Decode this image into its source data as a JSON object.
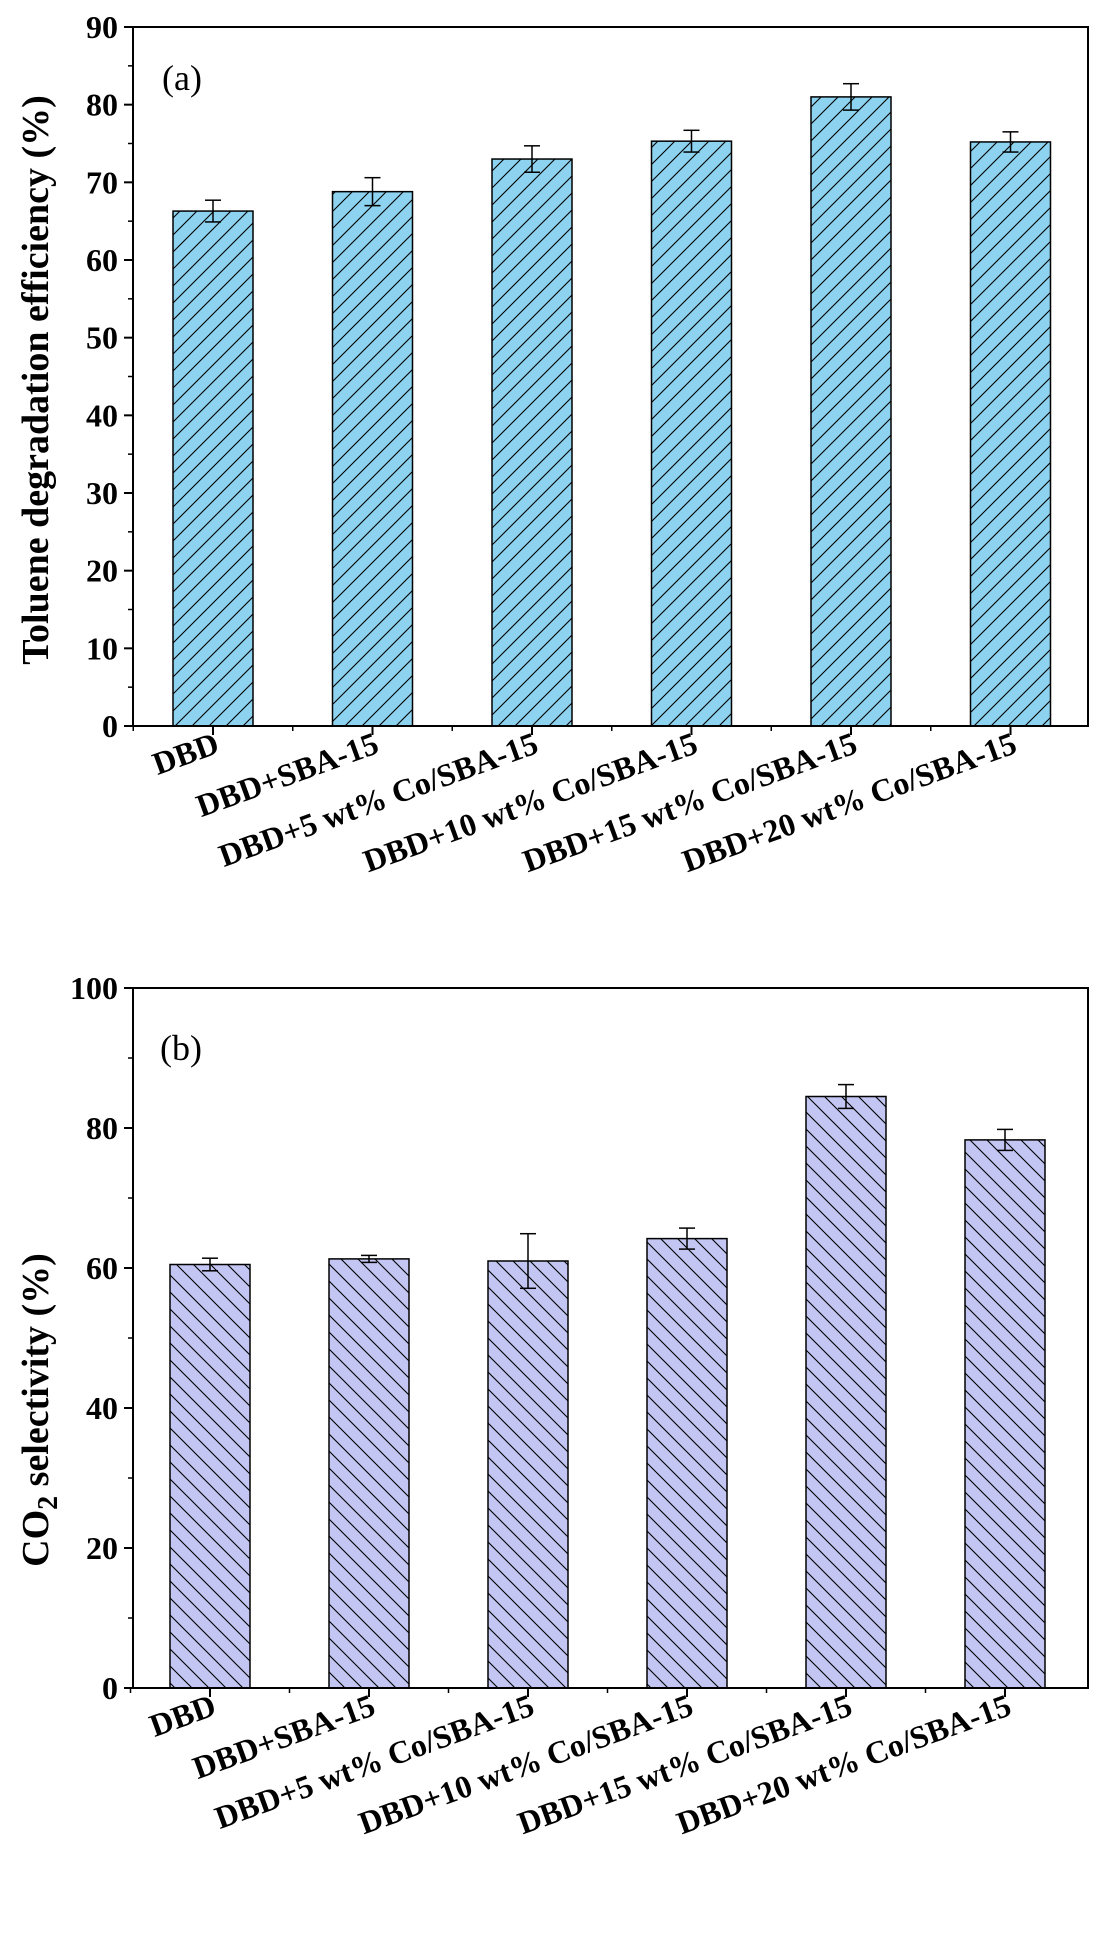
{
  "chart_data": [
    {
      "type": "bar",
      "panel_label": "(a)",
      "ylabel": "Toluene degradation efficiency (%)",
      "ylim": [
        0,
        90
      ],
      "yticks": [
        0,
        10,
        20,
        30,
        40,
        50,
        60,
        70,
        80,
        90
      ],
      "categories": [
        "DBD",
        "DBD+SBA-15",
        "DBD+5 wt% Co/SBA-15",
        "DBD+10 wt% Co/SBA-15",
        "DBD+15 wt% Co/SBA-15",
        "DBD+20 wt% Co/SBA-15"
      ],
      "values": [
        66.3,
        68.8,
        73.0,
        75.3,
        81.0,
        75.2
      ],
      "errors": [
        1.4,
        1.8,
        1.7,
        1.4,
        1.7,
        1.3
      ],
      "bar_color": "#8dd3f0",
      "hatch": "diagonal-up",
      "grid": false
    },
    {
      "type": "bar",
      "panel_label": "(b)",
      "ylabel_parts": [
        "CO",
        "2",
        " selectivity (%)"
      ],
      "ylim": [
        0,
        100
      ],
      "yticks": [
        0,
        20,
        40,
        60,
        80,
        100
      ],
      "categories": [
        "DBD",
        "DBD+SBA-15",
        "DBD+5 wt% Co/SBA-15",
        "DBD+10 wt% Co/SBA-15",
        "DBD+15 wt% Co/SBA-15",
        "DBD+20 wt% Co/SBA-15"
      ],
      "values": [
        60.5,
        61.3,
        61.0,
        64.2,
        84.5,
        78.3
      ],
      "errors": [
        0.9,
        0.5,
        3.9,
        1.5,
        1.7,
        1.5
      ],
      "bar_color": "#c3c6f2",
      "hatch": "diagonal-down",
      "grid": false
    }
  ]
}
